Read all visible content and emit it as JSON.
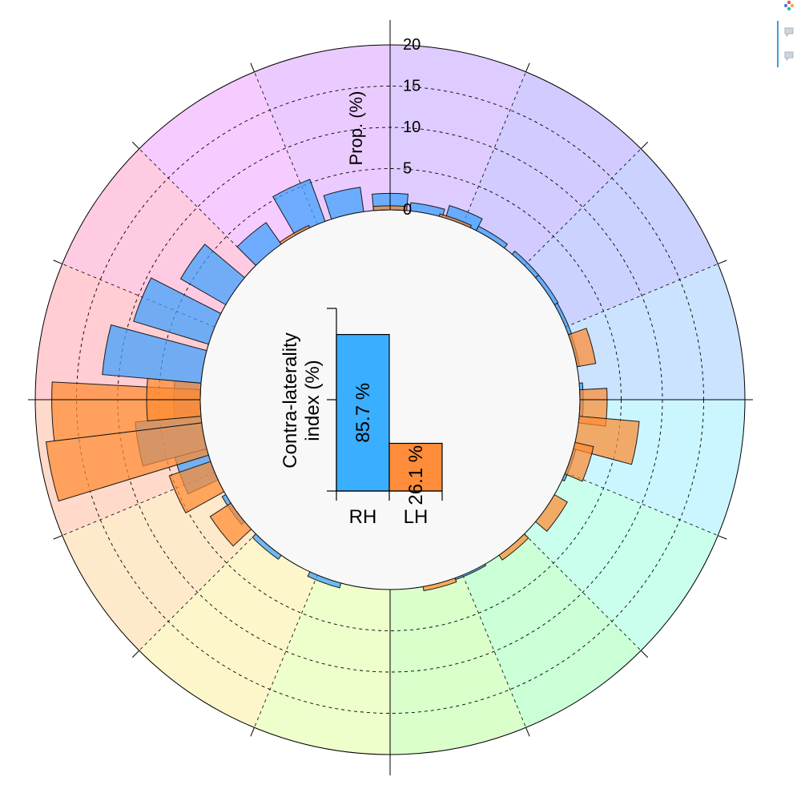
{
  "chart_data": {
    "type": "polar-bar",
    "title": "",
    "radial_axis": {
      "label": "Prop. (%)",
      "ticks": [
        "0",
        "5",
        "10",
        "15",
        "20"
      ],
      "range": [
        0,
        20
      ],
      "grid": "dashed"
    },
    "sectors": 16,
    "sector_colors": [
      "#dcc8ff",
      "#cfc8ff",
      "#c8d0ff",
      "#c8e2ff",
      "#c8f6ff",
      "#c8ffec",
      "#c8ffd4",
      "#d8ffc8",
      "#eeffc8",
      "#fdf5c8",
      "#ffe8c8",
      "#ffd8c8",
      "#ffcad0",
      "#ffc8e2",
      "#f5c8ff",
      "#eac8ff"
    ],
    "series": [
      {
        "name": "RH",
        "color": "#3aa0ff",
        "values": [
          {
            "angle": 0,
            "value": 2.0
          },
          {
            "angle": 11,
            "value": 1.0
          },
          {
            "angle": 22,
            "value": 1.6
          },
          {
            "angle": 32,
            "value": 0.6
          },
          {
            "angle": 45,
            "value": 0.5
          },
          {
            "angle": 55,
            "value": 0.5
          },
          {
            "angle": 65,
            "value": 0.4
          },
          {
            "angle": 75,
            "value": 0.3
          },
          {
            "angle": 90,
            "value": 0.4
          },
          {
            "angle": 110,
            "value": 0.3
          },
          {
            "angle": 155,
            "value": 0.2
          },
          {
            "angle": 200,
            "value": 0.6
          },
          {
            "angle": 220,
            "value": 0.6
          },
          {
            "angle": 235,
            "value": 0.5
          },
          {
            "angle": 250,
            "value": 4.0
          },
          {
            "angle": 260,
            "value": 8.0
          },
          {
            "angle": 270,
            "value": 3.2
          },
          {
            "angle": 280,
            "value": 12.0
          },
          {
            "angle": 292,
            "value": 9.5
          },
          {
            "angle": 305,
            "value": 6.3
          },
          {
            "angle": 320,
            "value": 3.2
          },
          {
            "angle": 335,
            "value": 5.4
          },
          {
            "angle": 347,
            "value": 3.0
          }
        ],
        "bar_width_deg": 10
      },
      {
        "name": "LH",
        "color": "#ff8a30",
        "values": [
          {
            "angle": 0,
            "value": 0.5
          },
          {
            "angle": 20,
            "value": 0.3
          },
          {
            "angle": 75,
            "value": 2.3
          },
          {
            "angle": 92,
            "value": 3.3
          },
          {
            "angle": 100,
            "value": 7.3
          },
          {
            "angle": 108,
            "value": 2.3
          },
          {
            "angle": 125,
            "value": 1.8
          },
          {
            "angle": 140,
            "value": 0.7
          },
          {
            "angle": 165,
            "value": 0.5
          },
          {
            "angle": 232,
            "value": 3.0
          },
          {
            "angle": 246,
            "value": 5.3
          },
          {
            "angle": 258,
            "value": 19.0
          },
          {
            "angle": 268,
            "value": 18.0
          },
          {
            "angle": 270,
            "value": 6.5
          },
          {
            "angle": 330,
            "value": 0.3
          }
        ],
        "bar_width_deg": 10
      }
    ],
    "inset": {
      "type": "bar",
      "ylabel": "Contra-laterality index (%)",
      "ylabel_line1": "Contra-laterality",
      "ylabel_line2": "index (%)",
      "categories": [
        "RH",
        "LH"
      ],
      "values": [
        85.7,
        26.1
      ],
      "value_labels": [
        "85.7 %",
        "26.1 %"
      ],
      "colors": [
        "#3aaeff",
        "#ff8c3a"
      ],
      "ylim": [
        0,
        100
      ]
    }
  },
  "toolbar": {
    "icons": [
      "plotly-logo-icon",
      "comment-icon",
      "comment-icon"
    ]
  }
}
